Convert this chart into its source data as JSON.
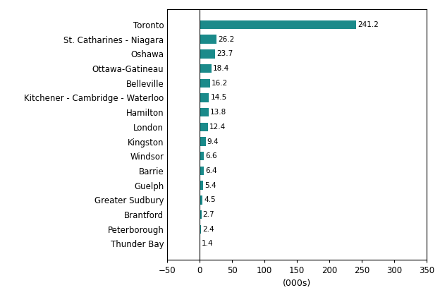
{
  "categories": [
    "Thunder Bay",
    "Peterborough",
    "Brantford",
    "Greater Sudbury",
    "Guelph",
    "Barrie",
    "Windsor",
    "Kingston",
    "London",
    "Hamilton",
    "Kitchener - Cambridge - Waterloo",
    "Belleville",
    "Ottawa-Gatineau",
    "Oshawa",
    "St. Catharines - Niagara",
    "Toronto"
  ],
  "values": [
    1.4,
    2.4,
    2.7,
    4.5,
    5.4,
    6.4,
    6.6,
    9.4,
    12.4,
    13.8,
    14.5,
    16.2,
    18.4,
    23.7,
    26.2,
    241.2
  ],
  "bar_color": "#1a8a8a",
  "xlabel": "(000s)",
  "xlim": [
    -50,
    350
  ],
  "xticks": [
    -50,
    0,
    50,
    100,
    150,
    200,
    250,
    300,
    350
  ],
  "background_color": "#ffffff",
  "bar_height": 0.6,
  "value_fontsize": 7.5,
  "label_fontsize": 8.5,
  "xlabel_fontsize": 9
}
